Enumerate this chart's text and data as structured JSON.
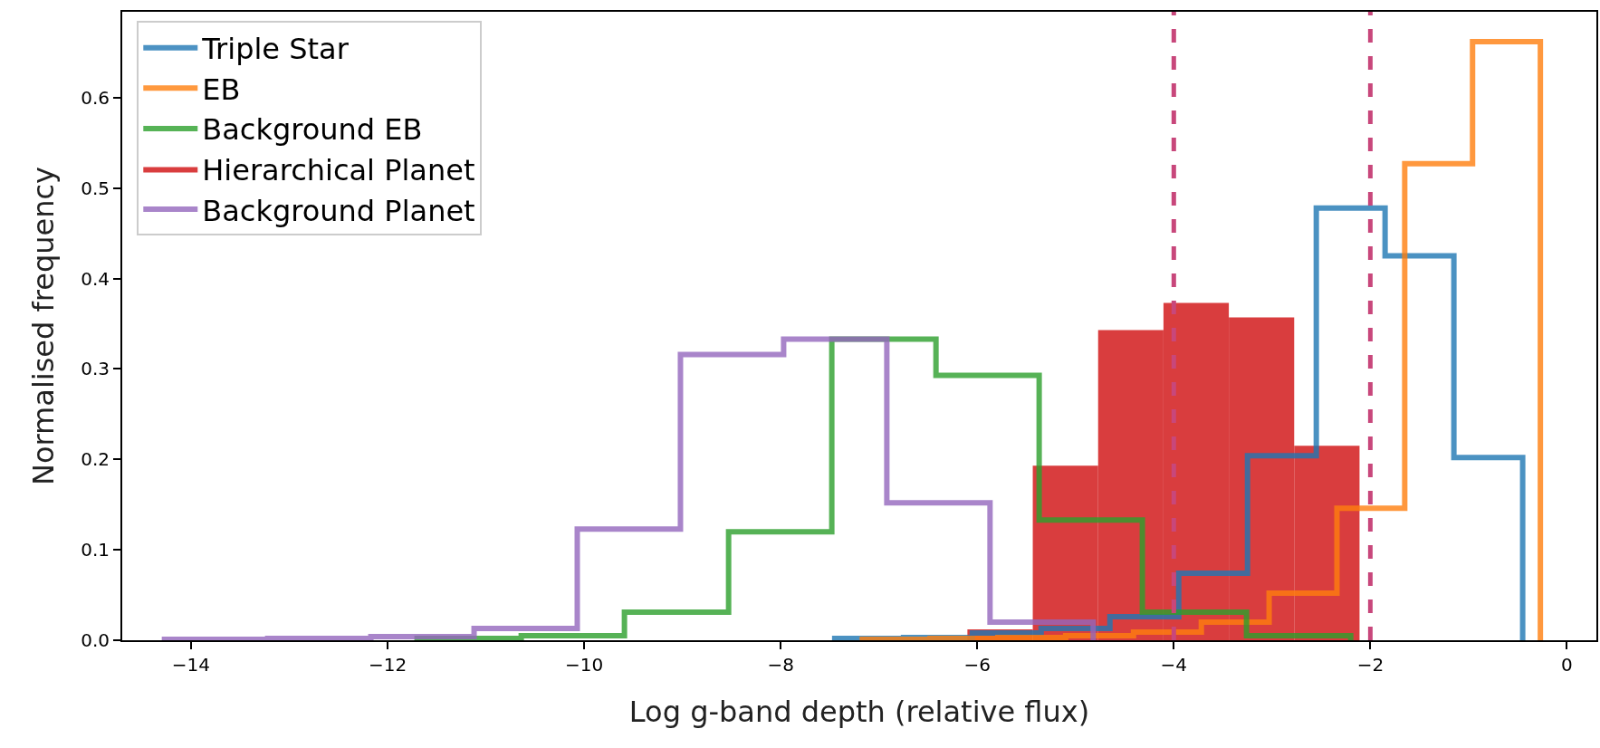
{
  "chart_data": {
    "type": "histogram",
    "xlabel": "Log g-band depth (relative flux)",
    "ylabel": "Normalised frequency",
    "xlim": [
      -14.7,
      0.3
    ],
    "ylim": [
      0,
      0.695
    ],
    "xticks": [
      {
        "value": -14,
        "label": "−14"
      },
      {
        "value": -12,
        "label": "−12"
      },
      {
        "value": -10,
        "label": "−10"
      },
      {
        "value": -8,
        "label": "−8"
      },
      {
        "value": -6,
        "label": "−6"
      },
      {
        "value": -4,
        "label": "−4"
      },
      {
        "value": -2,
        "label": "−2"
      },
      {
        "value": 0,
        "label": "0"
      }
    ],
    "yticks": [
      {
        "value": 0,
        "label": "0.0"
      },
      {
        "value": 0.1,
        "label": "0.1"
      },
      {
        "value": 0.2,
        "label": "0.2"
      },
      {
        "value": 0.3,
        "label": "0.3"
      },
      {
        "value": 0.4,
        "label": "0.4"
      },
      {
        "value": 0.5,
        "label": "0.5"
      },
      {
        "value": 0.6,
        "label": "0.6"
      }
    ],
    "legend": "top left",
    "bins": [
      -7.43,
      -6.765,
      -6.1,
      -5.435,
      -4.77,
      -4.105,
      -3.44,
      -2.775,
      -2.11
    ],
    "series": [
      {
        "name": "Triple Star",
        "type": "step",
        "color": "#1f77b4",
        "x": [
          -7.45,
          -7.45,
          -6.75,
          -6.05,
          -5.35,
          -4.65,
          -3.95,
          -3.25,
          -2.55,
          -1.85,
          -1.15,
          -0.45
        ],
        "values": [
          0,
          0.002,
          0.003,
          0.008,
          0.013,
          0.026,
          0.074,
          0.204,
          0.478,
          0.425,
          0.202,
          0
        ]
      },
      {
        "name": "EB",
        "type": "step",
        "color": "#ff7f0e",
        "x": [
          -7.17,
          -7.17,
          -6.48,
          -5.79,
          -5.1,
          -4.41,
          -3.72,
          -3.03,
          -2.34,
          -1.65,
          -0.96,
          -0.27
        ],
        "values": [
          0,
          0.001,
          0.002,
          0.003,
          0.005,
          0.009,
          0.02,
          0.052,
          0.146,
          0.527,
          0.662,
          0
        ]
      },
      {
        "name": "Background EB",
        "type": "step",
        "color": "#2ca02c",
        "x": [
          -11.7,
          -11.7,
          -10.64,
          -9.59,
          -8.53,
          -7.48,
          -6.42,
          -5.37,
          -4.32,
          -3.26,
          -2.2
        ],
        "values": [
          0,
          0.002,
          0.005,
          0.031,
          0.12,
          0.333,
          0.293,
          0.133,
          0.031,
          0.005,
          0
        ]
      },
      {
        "name": "Hierarchical Planet",
        "color": "#d93d3e",
        "values": [
          null,
          null,
          0.012,
          0.193,
          0.343,
          0.373,
          0.357,
          0.215
        ]
      },
      {
        "name": "Background Planet",
        "type": "step",
        "color": "#9467bd",
        "x": [
          -14.27,
          -14.27,
          -13.22,
          -12.17,
          -11.12,
          -10.07,
          -9.02,
          -7.97,
          -6.92,
          -5.87,
          -4.82
        ],
        "values": [
          0,
          0.001,
          0.002,
          0.004,
          0.013,
          0.123,
          0.316,
          0.333,
          0.152,
          0.02,
          0
        ]
      }
    ],
    "ref_lines": [
      {
        "axis": "x",
        "value": -4,
        "color": "#c8477b",
        "line_style": "dashed"
      },
      {
        "axis": "x",
        "value": -2,
        "color": "#c8477b",
        "line_style": "dashed"
      }
    ]
  }
}
